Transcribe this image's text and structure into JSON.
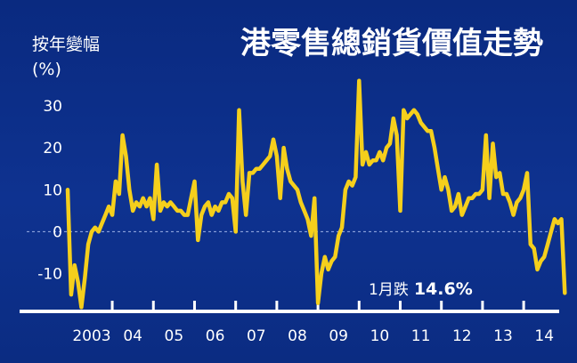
{
  "colors": {
    "background": "#0d2f86",
    "line": "#f5cf1c",
    "text": "#ffffff",
    "zero_line": "#9fb3e6"
  },
  "chart_data": {
    "type": "line",
    "title": "港零售總銷貨價值走勢",
    "ylabel": "按年變幅",
    "yunit": "(%)",
    "xlabel": "",
    "ylim": [
      -19,
      37
    ],
    "xlim": [
      2002.7,
      2014.95
    ],
    "yticks": [
      30,
      20,
      10,
      0,
      -10
    ],
    "ytick_labels": [
      "30",
      "20",
      "10",
      "0",
      "-10"
    ],
    "xticks": [
      2003,
      2004,
      2005,
      2006,
      2007,
      2008,
      2009,
      2010,
      2011,
      2012,
      2013,
      2014
    ],
    "xtick_labels": [
      "2003",
      "04",
      "05",
      "06",
      "07",
      "08",
      "09",
      "10",
      "11",
      "12",
      "13",
      "14"
    ],
    "grid": false,
    "legend": "none",
    "annotation": {
      "text": "1月跌",
      "value": "14.6%",
      "date": "2015-01"
    },
    "series": [
      {
        "points": [
          [
            "2002-12",
            10
          ],
          [
            "2003-01",
            -15
          ],
          [
            "2003-02",
            -8
          ],
          [
            "2003-03",
            -12
          ],
          [
            "2003-04",
            -18
          ],
          [
            "2003-05",
            -11
          ],
          [
            "2003-06",
            -3
          ],
          [
            "2003-07",
            0
          ],
          [
            "2003-08",
            1
          ],
          [
            "2003-09",
            0
          ],
          [
            "2003-10",
            2
          ],
          [
            "2003-11",
            4
          ],
          [
            "2003-12",
            6
          ],
          [
            "2004-01",
            4
          ],
          [
            "2004-02",
            12
          ],
          [
            "2004-03",
            9
          ],
          [
            "2004-04",
            23
          ],
          [
            "2004-05",
            18
          ],
          [
            "2004-06",
            10
          ],
          [
            "2004-07",
            5
          ],
          [
            "2004-08",
            7
          ],
          [
            "2004-09",
            6
          ],
          [
            "2004-10",
            8
          ],
          [
            "2004-11",
            6
          ],
          [
            "2004-12",
            8
          ],
          [
            "2005-01",
            3
          ],
          [
            "2005-02",
            16
          ],
          [
            "2005-03",
            5
          ],
          [
            "2005-04",
            7
          ],
          [
            "2005-05",
            6
          ],
          [
            "2005-06",
            7
          ],
          [
            "2005-07",
            6
          ],
          [
            "2005-08",
            5
          ],
          [
            "2005-09",
            5
          ],
          [
            "2005-10",
            4
          ],
          [
            "2005-11",
            4
          ],
          [
            "2005-12",
            8
          ],
          [
            "2006-01",
            12
          ],
          [
            "2006-02",
            -2
          ],
          [
            "2006-03",
            4
          ],
          [
            "2006-04",
            6
          ],
          [
            "2006-05",
            7
          ],
          [
            "2006-06",
            4
          ],
          [
            "2006-07",
            6
          ],
          [
            "2006-08",
            5
          ],
          [
            "2006-09",
            7
          ],
          [
            "2006-10",
            7
          ],
          [
            "2006-11",
            9
          ],
          [
            "2006-12",
            8
          ],
          [
            "2007-01",
            0
          ],
          [
            "2007-02",
            29
          ],
          [
            "2007-03",
            12
          ],
          [
            "2007-04",
            4
          ],
          [
            "2007-05",
            14
          ],
          [
            "2007-06",
            14
          ],
          [
            "2007-07",
            15
          ],
          [
            "2007-08",
            15
          ],
          [
            "2007-09",
            16
          ],
          [
            "2007-10",
            17
          ],
          [
            "2007-11",
            18
          ],
          [
            "2007-12",
            22
          ],
          [
            "2008-01",
            18
          ],
          [
            "2008-02",
            8
          ],
          [
            "2008-03",
            20
          ],
          [
            "2008-04",
            15
          ],
          [
            "2008-05",
            12
          ],
          [
            "2008-06",
            11
          ],
          [
            "2008-07",
            10
          ],
          [
            "2008-08",
            7
          ],
          [
            "2008-09",
            5
          ],
          [
            "2008-10",
            3
          ],
          [
            "2008-11",
            -1
          ],
          [
            "2008-12",
            8
          ],
          [
            "2009-01",
            -17
          ],
          [
            "2009-02",
            -10
          ],
          [
            "2009-03",
            -6
          ],
          [
            "2009-04",
            -9
          ],
          [
            "2009-05",
            -7
          ],
          [
            "2009-06",
            -6
          ],
          [
            "2009-07",
            -1
          ],
          [
            "2009-08",
            1
          ],
          [
            "2009-09",
            10
          ],
          [
            "2009-10",
            12
          ],
          [
            "2009-11",
            11
          ],
          [
            "2009-12",
            13
          ],
          [
            "2010-01",
            36
          ],
          [
            "2010-02",
            16
          ],
          [
            "2010-03",
            19
          ],
          [
            "2010-04",
            16
          ],
          [
            "2010-05",
            17
          ],
          [
            "2010-06",
            17
          ],
          [
            "2010-07",
            19
          ],
          [
            "2010-08",
            17
          ],
          [
            "2010-09",
            20
          ],
          [
            "2010-10",
            21
          ],
          [
            "2010-11",
            27
          ],
          [
            "2010-12",
            23
          ],
          [
            "2011-01",
            5
          ],
          [
            "2011-02",
            29
          ],
          [
            "2011-03",
            27
          ],
          [
            "2011-04",
            28
          ],
          [
            "2011-05",
            29
          ],
          [
            "2011-06",
            28
          ],
          [
            "2011-07",
            26
          ],
          [
            "2011-08",
            25
          ],
          [
            "2011-09",
            24
          ],
          [
            "2011-10",
            24
          ],
          [
            "2011-11",
            20
          ],
          [
            "2011-12",
            15
          ],
          [
            "2012-01",
            10
          ],
          [
            "2012-02",
            13
          ],
          [
            "2012-03",
            10
          ],
          [
            "2012-04",
            5
          ],
          [
            "2012-05",
            6
          ],
          [
            "2012-06",
            9
          ],
          [
            "2012-07",
            4
          ],
          [
            "2012-08",
            6
          ],
          [
            "2012-09",
            8
          ],
          [
            "2012-10",
            8
          ],
          [
            "2012-11",
            9
          ],
          [
            "2012-12",
            9
          ],
          [
            "2013-01",
            10
          ],
          [
            "2013-02",
            23
          ],
          [
            "2013-03",
            8
          ],
          [
            "2013-04",
            21
          ],
          [
            "2013-05",
            13
          ],
          [
            "2013-06",
            14
          ],
          [
            "2013-07",
            9
          ],
          [
            "2013-08",
            9
          ],
          [
            "2013-09",
            7
          ],
          [
            "2013-10",
            4
          ],
          [
            "2013-11",
            7
          ],
          [
            "2013-12",
            8
          ],
          [
            "2014-01",
            10
          ],
          [
            "2014-02",
            14
          ],
          [
            "2014-03",
            -3
          ],
          [
            "2014-04",
            -4
          ],
          [
            "2014-05",
            -9
          ],
          [
            "2014-06",
            -7
          ],
          [
            "2014-07",
            -6
          ],
          [
            "2014-08",
            -3
          ],
          [
            "2014-09",
            0
          ],
          [
            "2014-10",
            3
          ],
          [
            "2014-11",
            2
          ],
          [
            "2014-12",
            3
          ],
          [
            "2015-01",
            -14.6
          ]
        ]
      }
    ]
  }
}
